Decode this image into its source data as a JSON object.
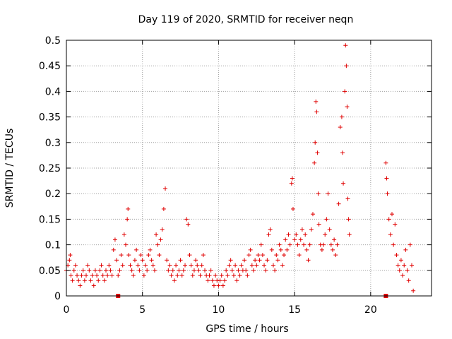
{
  "chart_data": {
    "type": "scatter",
    "title": "Day 119 of 2020, SRMTID for receiver neqn",
    "xlabel": "GPS time / hours",
    "ylabel": "SRMTID / TECUs",
    "xlim": [
      0,
      24
    ],
    "ylim": [
      0,
      0.5
    ],
    "x_ticks": [
      0,
      5,
      10,
      15,
      20
    ],
    "x_tick_labels": [
      "0",
      "5",
      "10",
      "15",
      "20"
    ],
    "y_ticks": [
      0,
      0.05,
      0.1,
      0.15,
      0.2,
      0.25,
      0.3,
      0.35,
      0.4,
      0.45,
      0.5
    ],
    "y_tick_labels": [
      "0",
      "0.05",
      "0.1",
      "0.15",
      "0.2",
      "0.25",
      "0.3",
      "0.35",
      "0.4",
      "0.45",
      "0.5"
    ],
    "grid": true,
    "marker": "+",
    "color": "#e00000",
    "series": [
      {
        "name": "SRMTID",
        "points": [
          [
            0.0,
            0.05
          ],
          [
            0.1,
            0.06
          ],
          [
            0.2,
            0.07
          ],
          [
            0.25,
            0.08
          ],
          [
            0.3,
            0.04
          ],
          [
            0.4,
            0.03
          ],
          [
            0.5,
            0.05
          ],
          [
            0.6,
            0.06
          ],
          [
            0.7,
            0.04
          ],
          [
            0.8,
            0.03
          ],
          [
            0.9,
            0.02
          ],
          [
            1.0,
            0.04
          ],
          [
            1.1,
            0.05
          ],
          [
            1.2,
            0.03
          ],
          [
            1.3,
            0.04
          ],
          [
            1.4,
            0.06
          ],
          [
            1.5,
            0.05
          ],
          [
            1.6,
            0.03
          ],
          [
            1.7,
            0.04
          ],
          [
            1.8,
            0.02
          ],
          [
            1.9,
            0.05
          ],
          [
            2.0,
            0.04
          ],
          [
            2.1,
            0.03
          ],
          [
            2.2,
            0.05
          ],
          [
            2.3,
            0.06
          ],
          [
            2.4,
            0.04
          ],
          [
            2.5,
            0.03
          ],
          [
            2.6,
            0.05
          ],
          [
            2.7,
            0.04
          ],
          [
            2.8,
            0.06
          ],
          [
            2.9,
            0.05
          ],
          [
            3.0,
            0.04
          ],
          [
            3.1,
            0.09
          ],
          [
            3.2,
            0.11
          ],
          [
            3.3,
            0.07
          ],
          [
            3.4,
            0.04
          ],
          [
            3.5,
            0.05
          ],
          [
            3.6,
            0.08
          ],
          [
            3.7,
            0.06
          ],
          [
            3.8,
            0.12
          ],
          [
            3.9,
            0.1
          ],
          [
            4.0,
            0.15
          ],
          [
            4.05,
            0.17
          ],
          [
            4.1,
            0.08
          ],
          [
            4.2,
            0.06
          ],
          [
            4.3,
            0.05
          ],
          [
            4.4,
            0.04
          ],
          [
            4.5,
            0.07
          ],
          [
            4.6,
            0.09
          ],
          [
            4.7,
            0.06
          ],
          [
            4.8,
            0.05
          ],
          [
            4.9,
            0.08
          ],
          [
            5.0,
            0.07
          ],
          [
            5.1,
            0.04
          ],
          [
            5.2,
            0.06
          ],
          [
            5.3,
            0.05
          ],
          [
            5.4,
            0.08
          ],
          [
            5.5,
            0.09
          ],
          [
            5.6,
            0.07
          ],
          [
            5.7,
            0.06
          ],
          [
            5.8,
            0.05
          ],
          [
            5.9,
            0.12
          ],
          [
            6.0,
            0.1
          ],
          [
            6.1,
            0.08
          ],
          [
            6.2,
            0.11
          ],
          [
            6.3,
            0.13
          ],
          [
            6.4,
            0.17
          ],
          [
            6.5,
            0.21
          ],
          [
            6.6,
            0.07
          ],
          [
            6.7,
            0.05
          ],
          [
            6.8,
            0.06
          ],
          [
            6.9,
            0.04
          ],
          [
            7.0,
            0.05
          ],
          [
            7.1,
            0.03
          ],
          [
            7.2,
            0.06
          ],
          [
            7.3,
            0.04
          ],
          [
            7.4,
            0.05
          ],
          [
            7.5,
            0.07
          ],
          [
            7.6,
            0.04
          ],
          [
            7.7,
            0.05
          ],
          [
            7.8,
            0.06
          ],
          [
            7.9,
            0.15
          ],
          [
            8.0,
            0.14
          ],
          [
            8.1,
            0.08
          ],
          [
            8.2,
            0.06
          ],
          [
            8.3,
            0.04
          ],
          [
            8.4,
            0.05
          ],
          [
            8.5,
            0.07
          ],
          [
            8.6,
            0.06
          ],
          [
            8.7,
            0.05
          ],
          [
            8.8,
            0.04
          ],
          [
            8.9,
            0.06
          ],
          [
            9.0,
            0.08
          ],
          [
            9.1,
            0.05
          ],
          [
            9.2,
            0.04
          ],
          [
            9.3,
            0.03
          ],
          [
            9.4,
            0.04
          ],
          [
            9.5,
            0.05
          ],
          [
            9.6,
            0.03
          ],
          [
            9.7,
            0.02
          ],
          [
            9.8,
            0.04
          ],
          [
            9.9,
            0.03
          ],
          [
            10.0,
            0.02
          ],
          [
            10.1,
            0.03
          ],
          [
            10.2,
            0.04
          ],
          [
            10.3,
            0.02
          ],
          [
            10.4,
            0.03
          ],
          [
            10.5,
            0.05
          ],
          [
            10.6,
            0.04
          ],
          [
            10.7,
            0.06
          ],
          [
            10.8,
            0.07
          ],
          [
            10.9,
            0.05
          ],
          [
            11.0,
            0.04
          ],
          [
            11.1,
            0.06
          ],
          [
            11.2,
            0.03
          ],
          [
            11.3,
            0.05
          ],
          [
            11.4,
            0.04
          ],
          [
            11.5,
            0.06
          ],
          [
            11.6,
            0.05
          ],
          [
            11.7,
            0.07
          ],
          [
            11.8,
            0.05
          ],
          [
            11.9,
            0.04
          ],
          [
            12.0,
            0.08
          ],
          [
            12.1,
            0.09
          ],
          [
            12.2,
            0.06
          ],
          [
            12.3,
            0.05
          ],
          [
            12.4,
            0.07
          ],
          [
            12.5,
            0.06
          ],
          [
            12.6,
            0.08
          ],
          [
            12.7,
            0.07
          ],
          [
            12.8,
            0.1
          ],
          [
            12.9,
            0.08
          ],
          [
            13.0,
            0.06
          ],
          [
            13.1,
            0.05
          ],
          [
            13.2,
            0.07
          ],
          [
            13.3,
            0.12
          ],
          [
            13.4,
            0.13
          ],
          [
            13.5,
            0.09
          ],
          [
            13.6,
            0.06
          ],
          [
            13.7,
            0.05
          ],
          [
            13.8,
            0.08
          ],
          [
            13.9,
            0.07
          ],
          [
            14.0,
            0.1
          ],
          [
            14.1,
            0.09
          ],
          [
            14.2,
            0.06
          ],
          [
            14.3,
            0.08
          ],
          [
            14.4,
            0.11
          ],
          [
            14.5,
            0.09
          ],
          [
            14.6,
            0.12
          ],
          [
            14.7,
            0.1
          ],
          [
            14.8,
            0.22
          ],
          [
            14.85,
            0.23
          ],
          [
            14.9,
            0.17
          ],
          [
            15.0,
            0.11
          ],
          [
            15.1,
            0.12
          ],
          [
            15.2,
            0.1
          ],
          [
            15.3,
            0.08
          ],
          [
            15.4,
            0.11
          ],
          [
            15.5,
            0.13
          ],
          [
            15.6,
            0.1
          ],
          [
            15.7,
            0.12
          ],
          [
            15.8,
            0.09
          ],
          [
            15.9,
            0.07
          ],
          [
            16.0,
            0.1
          ],
          [
            16.1,
            0.13
          ],
          [
            16.2,
            0.16
          ],
          [
            16.3,
            0.26
          ],
          [
            16.35,
            0.3
          ],
          [
            16.4,
            0.38
          ],
          [
            16.45,
            0.36
          ],
          [
            16.5,
            0.28
          ],
          [
            16.55,
            0.2
          ],
          [
            16.6,
            0.14
          ],
          [
            16.7,
            0.1
          ],
          [
            16.8,
            0.09
          ],
          [
            16.9,
            0.1
          ],
          [
            17.0,
            0.12
          ],
          [
            17.1,
            0.15
          ],
          [
            17.2,
            0.2
          ],
          [
            17.3,
            0.13
          ],
          [
            17.4,
            0.1
          ],
          [
            17.5,
            0.09
          ],
          [
            17.6,
            0.11
          ],
          [
            17.7,
            0.08
          ],
          [
            17.8,
            0.1
          ],
          [
            17.9,
            0.18
          ],
          [
            18.0,
            0.33
          ],
          [
            18.1,
            0.35
          ],
          [
            18.15,
            0.28
          ],
          [
            18.2,
            0.22
          ],
          [
            18.3,
            0.4
          ],
          [
            18.35,
            0.49
          ],
          [
            18.4,
            0.45
          ],
          [
            18.45,
            0.37
          ],
          [
            18.5,
            0.19
          ],
          [
            18.55,
            0.15
          ],
          [
            18.6,
            0.12
          ],
          [
            21.0,
            0.26
          ],
          [
            21.05,
            0.23
          ],
          [
            21.1,
            0.2
          ],
          [
            21.2,
            0.15
          ],
          [
            21.3,
            0.12
          ],
          [
            21.4,
            0.16
          ],
          [
            21.5,
            0.1
          ],
          [
            21.6,
            0.14
          ],
          [
            21.7,
            0.08
          ],
          [
            21.8,
            0.06
          ],
          [
            21.9,
            0.05
          ],
          [
            22.0,
            0.07
          ],
          [
            22.1,
            0.04
          ],
          [
            22.2,
            0.06
          ],
          [
            22.3,
            0.09
          ],
          [
            22.4,
            0.05
          ],
          [
            22.5,
            0.03
          ],
          [
            22.6,
            0.1
          ],
          [
            22.7,
            0.06
          ],
          [
            22.8,
            0.01
          ]
        ]
      },
      {
        "name": "boundary markers",
        "marker": "square",
        "points": [
          [
            3.4,
            0.0
          ],
          [
            21.0,
            0.0
          ]
        ]
      }
    ]
  }
}
